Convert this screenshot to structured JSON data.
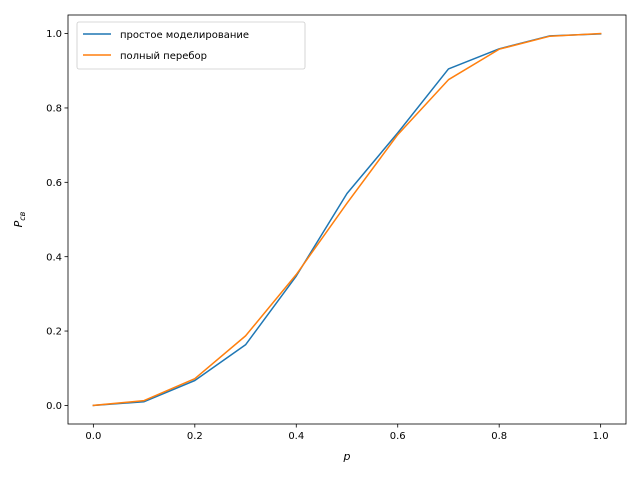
{
  "chart_data": {
    "type": "line",
    "xlabel": "p",
    "ylabel": {
      "main": "P",
      "sub": "св"
    },
    "xlim": [
      -0.05,
      1.05
    ],
    "ylim": [
      -0.05,
      1.05
    ],
    "xticks": [
      0.0,
      0.2,
      0.4,
      0.6,
      0.8,
      1.0
    ],
    "xtick_labels": [
      "0.0",
      "0.2",
      "0.4",
      "0.6",
      "0.8",
      "1.0"
    ],
    "yticks": [
      0.0,
      0.2,
      0.4,
      0.6,
      0.8,
      1.0
    ],
    "ytick_labels": [
      "0.0",
      "0.2",
      "0.4",
      "0.6",
      "0.8",
      "1.0"
    ],
    "grid": false,
    "legend_position": "upper-left",
    "x": [
      0.0,
      0.1,
      0.2,
      0.3,
      0.4,
      0.5,
      0.6,
      0.7,
      0.8,
      0.9,
      1.0
    ],
    "series": [
      {
        "name": "простое моделирование",
        "color": "#1f77b4",
        "values": [
          0.0,
          0.01,
          0.067,
          0.163,
          0.348,
          0.57,
          0.733,
          0.905,
          0.959,
          0.994,
          0.999
        ]
      },
      {
        "name": "полный перебор",
        "color": "#ff7f0e",
        "values": [
          0.0,
          0.013,
          0.072,
          0.187,
          0.352,
          0.544,
          0.728,
          0.876,
          0.958,
          0.993,
          1.0
        ]
      }
    ]
  }
}
